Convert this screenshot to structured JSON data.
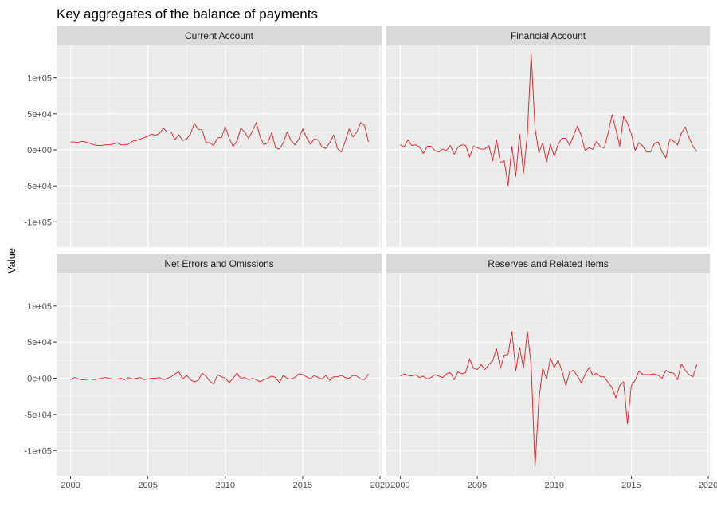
{
  "chart_data": {
    "type": "line",
    "title": "Key aggregates of the balance of payments",
    "xlabel": "",
    "ylabel": "Value",
    "xlim": [
      1999.1,
      2020.1
    ],
    "ylim": [
      -135000,
      145000
    ],
    "x_ticks": [
      2000,
      2005,
      2010,
      2015,
      2020
    ],
    "x_tick_labels": [
      "2000",
      "2005",
      "2010",
      "2015",
      "2020"
    ],
    "y_ticks": [
      -100000,
      -50000,
      0,
      50000,
      100000
    ],
    "y_tick_labels": [
      "-1e+05",
      "-5e+04",
      "0e+00",
      "5e+04",
      "1e+05"
    ],
    "grid": true,
    "line_color": "#e41a1c",
    "x": [
      2000.0,
      2000.25,
      2000.5,
      2000.75,
      2001.0,
      2001.25,
      2001.5,
      2001.75,
      2002.0,
      2002.25,
      2002.5,
      2002.75,
      2003.0,
      2003.25,
      2003.5,
      2003.75,
      2004.0,
      2004.25,
      2004.5,
      2004.75,
      2005.0,
      2005.25,
      2005.5,
      2005.75,
      2006.0,
      2006.25,
      2006.5,
      2006.75,
      2007.0,
      2007.25,
      2007.5,
      2007.75,
      2008.0,
      2008.25,
      2008.5,
      2008.75,
      2009.0,
      2009.25,
      2009.5,
      2009.75,
      2010.0,
      2010.25,
      2010.5,
      2010.75,
      2011.0,
      2011.25,
      2011.5,
      2011.75,
      2012.0,
      2012.25,
      2012.5,
      2012.75,
      2013.0,
      2013.25,
      2013.5,
      2013.75,
      2014.0,
      2014.25,
      2014.5,
      2014.75,
      2015.0,
      2015.25,
      2015.5,
      2015.75,
      2016.0,
      2016.25,
      2016.5,
      2016.75,
      2017.0,
      2017.25,
      2017.5,
      2017.75,
      2018.0,
      2018.25,
      2018.5,
      2018.75,
      2019.0,
      2019.25
    ],
    "panels": [
      {
        "name": "Current Account",
        "values": [
          11000,
          11000,
          10000,
          12000,
          11000,
          9000,
          7000,
          6000,
          6000,
          7000,
          7000,
          8000,
          10000,
          7000,
          7000,
          8000,
          12000,
          13000,
          15000,
          17000,
          19000,
          22000,
          20000,
          23000,
          30000,
          25000,
          25000,
          14000,
          21000,
          13000,
          15000,
          22000,
          37000,
          28000,
          28000,
          10000,
          10000,
          6000,
          17000,
          17000,
          32000,
          16000,
          5000,
          12000,
          30000,
          25000,
          16000,
          26000,
          38000,
          18000,
          7000,
          10000,
          24000,
          3000,
          1000,
          10000,
          25000,
          13000,
          7000,
          15000,
          29000,
          17000,
          8000,
          15000,
          14000,
          4000,
          2000,
          10000,
          21000,
          2000,
          -3000,
          12000,
          29000,
          18000,
          25000,
          38000,
          34000,
          11000
        ]
      },
      {
        "name": "Financial Account",
        "values": [
          7000,
          4000,
          14000,
          6000,
          7000,
          4000,
          -5000,
          5000,
          5000,
          -1000,
          -3000,
          1000,
          -1000,
          6000,
          -6000,
          4000,
          7000,
          6000,
          -10000,
          5000,
          3000,
          1000,
          1000,
          6000,
          -15000,
          14000,
          -18000,
          -15000,
          -50000,
          5000,
          -37000,
          22000,
          -33000,
          21000,
          133000,
          30000,
          -4000,
          10000,
          -17000,
          8000,
          -9000,
          8000,
          16000,
          16000,
          6000,
          20000,
          33000,
          20000,
          -1000,
          3000,
          1000,
          12000,
          4000,
          3000,
          24000,
          49000,
          28000,
          5000,
          47000,
          37000,
          22000,
          -1000,
          10000,
          5000,
          -3000,
          -3000,
          9000,
          11000,
          -3000,
          -11000,
          15000,
          12000,
          7000,
          23000,
          32000,
          17000,
          5000,
          -2000
        ]
      },
      {
        "name": "Net Errors and Omissions",
        "values": [
          -2000,
          1000,
          -1000,
          -2000,
          -2000,
          -1000,
          -2000,
          -1000,
          0,
          1000,
          0,
          -1000,
          -1000,
          0,
          -2000,
          1000,
          -1000,
          0,
          1000,
          -2000,
          -1000,
          0,
          0,
          1000,
          -2000,
          0,
          2000,
          6000,
          9000,
          -1000,
          4000,
          -2000,
          -5000,
          -3000,
          7000,
          3000,
          -4000,
          -8000,
          5000,
          2000,
          0,
          -6000,
          0,
          7000,
          0,
          1000,
          -2000,
          0,
          -2000,
          -5000,
          -2000,
          0,
          3000,
          1000,
          -6000,
          4000,
          0,
          -1000,
          1000,
          6000,
          5000,
          2000,
          -1000,
          4000,
          1000,
          -1000,
          4000,
          -3000,
          2000,
          2000,
          4000,
          1000,
          0,
          4000,
          3000,
          -1000,
          -2000,
          6000
        ]
      },
      {
        "name": "Reserves and Related Items",
        "values": [
          3000,
          6000,
          4000,
          3000,
          5000,
          1000,
          3000,
          -1000,
          1000,
          5000,
          3000,
          1000,
          6000,
          8000,
          -2000,
          9000,
          6000,
          8000,
          27000,
          14000,
          12000,
          19000,
          12000,
          19000,
          24000,
          41000,
          14000,
          32000,
          33000,
          65000,
          10000,
          43000,
          14000,
          65000,
          18000,
          -123000,
          -30000,
          14000,
          -1000,
          28000,
          15000,
          25000,
          10000,
          -10000,
          9000,
          11000,
          3000,
          -6000,
          5000,
          15000,
          4000,
          7000,
          2000,
          2000,
          -6000,
          -13000,
          -27000,
          -10000,
          -5000,
          -63000,
          -10000,
          -3000,
          10000,
          5000,
          5000,
          5000,
          6000,
          4000,
          0,
          11000,
          8000,
          7000,
          -2000,
          20000,
          11000,
          5000,
          2000,
          19000
        ]
      }
    ]
  }
}
